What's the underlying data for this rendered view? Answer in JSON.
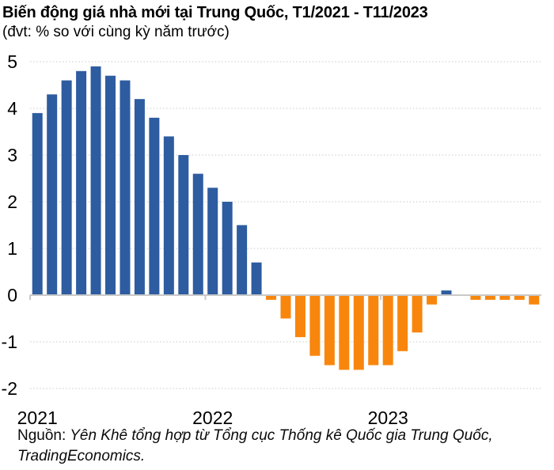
{
  "header": {
    "title": "Biến động giá nhà mới tại Trung Quốc, T1/2021 - T11/2023",
    "subtitle": "(đvt: % so với cùng kỳ năm trước)"
  },
  "source": {
    "label": "Nguồn:",
    "text": " Yên Khê tổng hợp từ Tổng cục Thống kê Quốc gia Trung Quốc, TradingEconomics."
  },
  "chart_data": {
    "type": "bar",
    "title": "Biến động giá nhà mới tại Trung Quốc, T1/2021 - T11/2023",
    "unit_note": "(đvt: % so với cùng kỳ năm trước)",
    "ylabel": "",
    "xlabel": "",
    "ylim": [
      -2,
      5
    ],
    "grid": "horizontal-dotted",
    "legend": "none",
    "positive_color": "#2D5CA0",
    "negative_color": "#F8860D",
    "axis_color": "#c8c8c8",
    "gridline_color": "#d4d4d4",
    "x": [
      "T1/2021",
      "T2/2021",
      "T3/2021",
      "T4/2021",
      "T5/2021",
      "T6/2021",
      "T7/2021",
      "T8/2021",
      "T9/2021",
      "T10/2021",
      "T11/2021",
      "T12/2021",
      "T1/2022",
      "T2/2022",
      "T3/2022",
      "T4/2022",
      "T5/2022",
      "T6/2022",
      "T7/2022",
      "T8/2022",
      "T9/2022",
      "T10/2022",
      "T11/2022",
      "T12/2022",
      "T1/2023",
      "T2/2023",
      "T3/2023",
      "T4/2023",
      "T5/2023",
      "T6/2023",
      "T7/2023",
      "T8/2023",
      "T9/2023",
      "T10/2023",
      "T11/2023"
    ],
    "values": [
      3.9,
      4.3,
      4.6,
      4.8,
      4.9,
      4.7,
      4.6,
      4.2,
      3.8,
      3.4,
      3.0,
      2.6,
      2.3,
      2.0,
      1.5,
      0.7,
      -0.1,
      -0.5,
      -0.9,
      -1.3,
      -1.5,
      -1.6,
      -1.6,
      -1.5,
      -1.5,
      -1.2,
      -0.8,
      -0.2,
      0.1,
      0.0,
      -0.1,
      -0.1,
      -0.1,
      -0.1,
      -0.2
    ],
    "yticks": [
      5,
      4,
      3,
      2,
      1,
      0,
      -1,
      -2
    ],
    "xticks": [
      {
        "label": "2021",
        "month_index": 0
      },
      {
        "label": "2022",
        "month_index": 12
      },
      {
        "label": "2023",
        "month_index": 24
      }
    ],
    "source": "Nguồn: Yên Khê tổng hợp từ Tổng cục Thống kê Quốc gia Trung Quốc, TradingEconomics."
  }
}
